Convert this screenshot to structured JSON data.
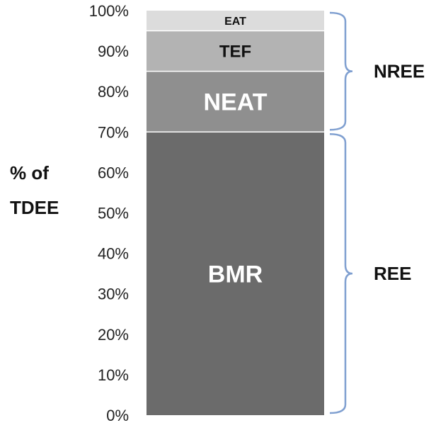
{
  "chart_data": {
    "type": "bar",
    "stacked": true,
    "ylabel_lines": [
      "% of",
      "TDEE"
    ],
    "ylim": [
      0,
      100
    ],
    "y_ticks": [
      "0%",
      "10%",
      "20%",
      "30%",
      "40%",
      "50%",
      "60%",
      "70%",
      "80%",
      "90%",
      "100%"
    ],
    "grid": false,
    "series": [
      {
        "name": "BMR",
        "value": 70,
        "color": "#6b6b6b",
        "label_color": "#ffffff"
      },
      {
        "name": "NEAT",
        "value": 15,
        "color": "#8f8f8f",
        "label_color": "#ffffff"
      },
      {
        "name": "TEF",
        "value": 10,
        "color": "#b3b3b3",
        "label_color": "#111111"
      },
      {
        "name": "EAT",
        "value": 5,
        "color": "#dcdcdc",
        "label_color": "#111111"
      }
    ],
    "brackets": [
      {
        "label": "NREE",
        "from": 70,
        "to": 100
      },
      {
        "label": "REE",
        "from": 0,
        "to": 70
      }
    ],
    "bracket_color": "#7f9fd0"
  }
}
